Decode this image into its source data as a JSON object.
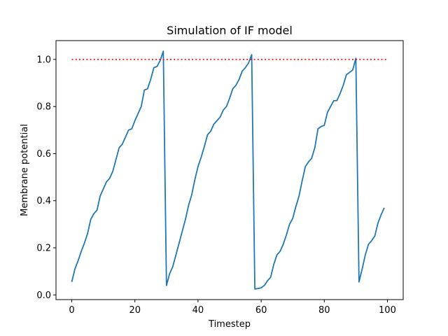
{
  "chart_data": {
    "type": "line",
    "title": "Simulation of IF model",
    "xlabel": "Timestep",
    "ylabel": "Membrane potential",
    "xlim": [
      -5,
      105
    ],
    "ylim": [
      -0.02,
      1.08
    ],
    "xticks": [
      0,
      20,
      40,
      60,
      80,
      100
    ],
    "xtick_labels": [
      "0",
      "20",
      "40",
      "60",
      "80",
      "100"
    ],
    "yticks": [
      0.0,
      0.2,
      0.4,
      0.6,
      0.8,
      1.0
    ],
    "ytick_labels": [
      "0.0",
      "0.2",
      "0.4",
      "0.6",
      "0.8",
      "1.0"
    ],
    "grid": false,
    "series": [
      {
        "color": "#1f77b4",
        "style": "solid",
        "x": [
          0,
          1,
          2,
          3,
          4,
          5,
          6,
          7,
          8,
          9,
          10,
          11,
          12,
          13,
          14,
          15,
          16,
          17,
          18,
          19,
          20,
          21,
          22,
          23,
          24,
          25,
          26,
          27,
          28,
          29,
          30,
          31,
          32,
          33,
          34,
          35,
          36,
          37,
          38,
          39,
          40,
          41,
          42,
          43,
          44,
          45,
          46,
          47,
          48,
          49,
          50,
          51,
          52,
          53,
          54,
          55,
          56,
          57,
          58,
          59,
          60,
          61,
          62,
          63,
          64,
          65,
          66,
          67,
          68,
          69,
          70,
          71,
          72,
          73,
          74,
          75,
          76,
          77,
          78,
          79,
          80,
          81,
          82,
          83,
          84,
          85,
          86,
          87,
          88,
          89,
          90,
          91,
          92,
          93,
          94,
          95,
          96,
          97,
          98,
          99
        ],
        "y": [
          0.055,
          0.11,
          0.145,
          0.185,
          0.22,
          0.26,
          0.32,
          0.345,
          0.36,
          0.42,
          0.45,
          0.48,
          0.495,
          0.525,
          0.575,
          0.625,
          0.64,
          0.67,
          0.7,
          0.705,
          0.74,
          0.77,
          0.8,
          0.87,
          0.875,
          0.915,
          0.965,
          0.97,
          0.995,
          1.035,
          0.04,
          0.09,
          0.12,
          0.17,
          0.22,
          0.27,
          0.32,
          0.38,
          0.425,
          0.49,
          0.545,
          0.585,
          0.63,
          0.68,
          0.695,
          0.725,
          0.74,
          0.755,
          0.785,
          0.8,
          0.835,
          0.875,
          0.89,
          0.915,
          0.95,
          0.965,
          0.985,
          1.02,
          0.025,
          0.027,
          0.03,
          0.04,
          0.06,
          0.075,
          0.13,
          0.17,
          0.185,
          0.215,
          0.255,
          0.3,
          0.325,
          0.375,
          0.42,
          0.485,
          0.545,
          0.565,
          0.58,
          0.625,
          0.705,
          0.715,
          0.72,
          0.775,
          0.8,
          0.825,
          0.825,
          0.855,
          0.89,
          0.935,
          0.945,
          0.955,
          1.005,
          0.055,
          0.11,
          0.17,
          0.215,
          0.23,
          0.25,
          0.305,
          0.34,
          0.37
        ]
      },
      {
        "color": "#ff0000",
        "style": "dotted",
        "x": [
          0,
          100
        ],
        "y": [
          1.0,
          1.0
        ]
      }
    ]
  }
}
